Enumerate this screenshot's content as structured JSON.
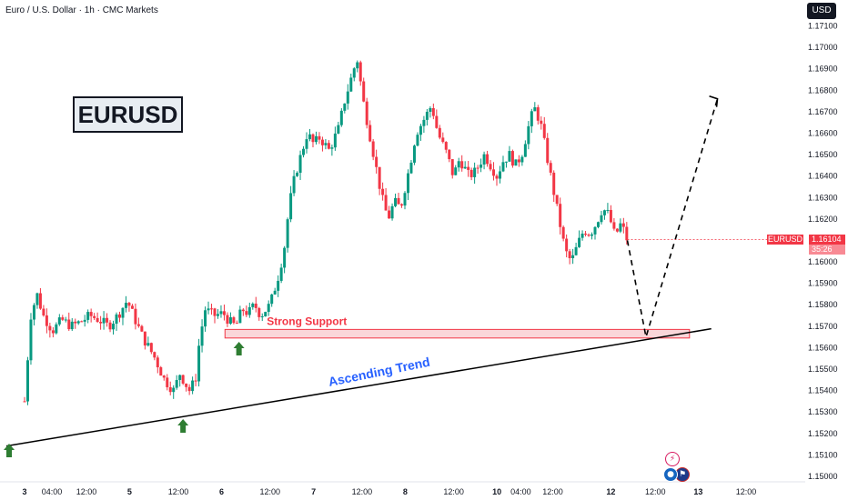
{
  "header": {
    "title": "Euro / U.S. Dollar · 1h · CMC Markets",
    "currency": "USD"
  },
  "symbol_label": "EURUSD",
  "price_tag": {
    "symbol": "EURUSD",
    "price": "1.16104",
    "countdown": "35:26"
  },
  "colors": {
    "up": "#089981",
    "down": "#f23645",
    "support_fill": "#f8c5c9",
    "support_border": "#f23645",
    "support_text": "#f23645",
    "trend_text": "#2962ff",
    "arrow": "#2e7d32",
    "line": "#000000"
  },
  "events": {
    "icon1": "lightning-icon",
    "icon2": "flag-icon"
  },
  "chart_data": {
    "type": "candlestick",
    "title": "Euro / U.S. Dollar · 1h · CMC Markets",
    "y_axis": {
      "min": 1.15,
      "max": 1.1715,
      "ticks": [
        "1.17100",
        "1.17000",
        "1.16900",
        "1.16800",
        "1.16700",
        "1.16600",
        "1.16500",
        "1.16400",
        "1.16300",
        "1.16200",
        "1.16000",
        "1.15900",
        "1.15800",
        "1.15700",
        "1.15600",
        "1.15500",
        "1.15400",
        "1.15300",
        "1.15200",
        "1.15100",
        "1.15000"
      ]
    },
    "x_axis": {
      "ticks": [
        {
          "label": "3",
          "bold": true,
          "x": 0.0
        },
        {
          "label": "04:00",
          "bold": false,
          "x": 0.088
        },
        {
          "label": "12:00",
          "bold": false,
          "x": 0.199
        },
        {
          "label": "5",
          "bold": true,
          "x": 0.338
        },
        {
          "label": "12:00",
          "bold": false,
          "x": 0.495
        },
        {
          "label": "6",
          "bold": true,
          "x": 0.634
        },
        {
          "label": "12:00",
          "bold": false,
          "x": 0.79
        },
        {
          "label": "7",
          "bold": true,
          "x": 0.93
        },
        {
          "label": "12:00",
          "bold": false,
          "x": 1.086
        },
        {
          "label": "8",
          "bold": true,
          "x": 1.225
        },
        {
          "label": "12:00",
          "bold": false,
          "x": 1.381
        },
        {
          "label": "10",
          "bold": true,
          "x": 1.52
        },
        {
          "label": "04:00",
          "bold": false,
          "x": 1.597
        },
        {
          "label": "12:00",
          "bold": false,
          "x": 1.7
        },
        {
          "label": "12",
          "bold": true,
          "x": 1.887
        },
        {
          "label": "12:00",
          "bold": false,
          "x": 2.03
        },
        {
          "label": "13",
          "bold": true,
          "x": 2.168
        },
        {
          "label": "12:00",
          "bold": false,
          "x": 2.322
        }
      ]
    },
    "last_price": 1.16104,
    "path": [
      [
        0.0,
        1.1535
      ],
      [
        0.02,
        1.1575
      ],
      [
        0.04,
        1.1585
      ],
      [
        0.06,
        1.1575
      ],
      [
        0.09,
        1.1568
      ],
      [
        0.12,
        1.1573
      ],
      [
        0.15,
        1.157
      ],
      [
        0.18,
        1.1572
      ],
      [
        0.21,
        1.1575
      ],
      [
        0.24,
        1.1573
      ],
      [
        0.27,
        1.157
      ],
      [
        0.3,
        1.1575
      ],
      [
        0.33,
        1.1582
      ],
      [
        0.35,
        1.1575
      ],
      [
        0.38,
        1.1565
      ],
      [
        0.42,
        1.1555
      ],
      [
        0.45,
        1.1545
      ],
      [
        0.48,
        1.154
      ],
      [
        0.5,
        1.1548
      ],
      [
        0.53,
        1.154
      ],
      [
        0.55,
        1.1545
      ],
      [
        0.56,
        1.156
      ],
      [
        0.58,
        1.1578
      ],
      [
        0.61,
        1.1575
      ],
      [
        0.64,
        1.1576
      ],
      [
        0.66,
        1.1572
      ],
      [
        0.68,
        1.157
      ],
      [
        0.7,
        1.1578
      ],
      [
        0.72,
        1.1576
      ],
      [
        0.74,
        1.158
      ],
      [
        0.76,
        1.1575
      ],
      [
        0.79,
        1.158
      ],
      [
        0.82,
        1.1595
      ],
      [
        0.84,
        1.161
      ],
      [
        0.85,
        1.1625
      ],
      [
        0.87,
        1.164
      ],
      [
        0.89,
        1.165
      ],
      [
        0.91,
        1.166
      ],
      [
        0.93,
        1.1655
      ],
      [
        0.95,
        1.1658
      ],
      [
        0.98,
        1.1652
      ],
      [
        1.01,
        1.1662
      ],
      [
        1.03,
        1.1675
      ],
      [
        1.05,
        1.1685
      ],
      [
        1.07,
        1.1695
      ],
      [
        1.09,
        1.1675
      ],
      [
        1.11,
        1.166
      ],
      [
        1.13,
        1.1645
      ],
      [
        1.15,
        1.163
      ],
      [
        1.17,
        1.162
      ],
      [
        1.19,
        1.1628
      ],
      [
        1.21,
        1.1625
      ],
      [
        1.24,
        1.1645
      ],
      [
        1.26,
        1.166
      ],
      [
        1.28,
        1.1665
      ],
      [
        1.31,
        1.1673
      ],
      [
        1.33,
        1.166
      ],
      [
        1.36,
        1.165
      ],
      [
        1.38,
        1.164
      ],
      [
        1.4,
        1.1648
      ],
      [
        1.43,
        1.164
      ],
      [
        1.45,
        1.1642
      ],
      [
        1.48,
        1.165
      ],
      [
        1.5,
        1.1645
      ],
      [
        1.52,
        1.164
      ],
      [
        1.54,
        1.1647
      ],
      [
        1.56,
        1.165
      ],
      [
        1.58,
        1.1645
      ],
      [
        1.6,
        1.165
      ],
      [
        1.62,
        1.1662
      ],
      [
        1.64,
        1.1672
      ],
      [
        1.66,
        1.1665
      ],
      [
        1.68,
        1.165
      ],
      [
        1.7,
        1.1635
      ],
      [
        1.72,
        1.162
      ],
      [
        1.74,
        1.1605
      ],
      [
        1.76,
        1.16
      ],
      [
        1.78,
        1.1608
      ],
      [
        1.8,
        1.1615
      ],
      [
        1.82,
        1.1613
      ],
      [
        1.84,
        1.1618
      ],
      [
        1.86,
        1.1625
      ],
      [
        1.88,
        1.1622
      ],
      [
        1.9,
        1.1612
      ],
      [
        1.92,
        1.1618
      ],
      [
        1.94,
        1.161
      ]
    ],
    "support_zone": {
      "label": "Strong Support",
      "low": 1.15645,
      "high": 1.15685,
      "x_start": 0.645,
      "x_end": 2.14
    },
    "trend_line": {
      "label": "Ascending Trend",
      "x1": 0.0,
      "y1": 1.1515,
      "x2": 2.21,
      "y2": 1.15688
    },
    "projection": [
      [
        1.94,
        1.161
      ],
      [
        2.0,
        1.1565
      ],
      [
        2.23,
        1.1676
      ]
    ],
    "markers": [
      {
        "type": "up-arrow",
        "x": 0.0,
        "y": 1.1515
      },
      {
        "type": "up-arrow",
        "x": 0.51,
        "y": 1.1526
      },
      {
        "type": "up-arrow",
        "x": 0.69,
        "y": 1.1563
      }
    ]
  }
}
